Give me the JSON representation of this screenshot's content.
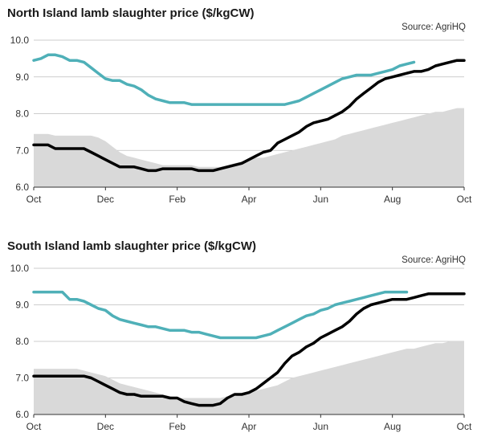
{
  "chart_data": [
    {
      "type": "line",
      "title": "North Island lamb slaughter price ($/kgCW)",
      "source": "Source: AgriHQ",
      "xlabel": "",
      "ylabel": "",
      "ylim": [
        6.0,
        10.0
      ],
      "yticks": [
        "6.0",
        "7.0",
        "8.0",
        "9.0",
        "10.0"
      ],
      "xticks": [
        "Oct",
        "Dec",
        "Feb",
        "Apr",
        "Jun",
        "Aug",
        "Oct"
      ],
      "grid": true,
      "legend": "none",
      "x": [
        "Oct",
        "",
        "",
        "",
        "",
        "",
        "",
        "",
        "",
        "",
        "Dec",
        "",
        "",
        "",
        "",
        "",
        "",
        "",
        "",
        "",
        "Feb",
        "",
        "",
        "",
        "",
        "",
        "",
        "",
        "",
        "",
        "Apr",
        "",
        "",
        "",
        "",
        "",
        "",
        "",
        "",
        "",
        "Jun",
        "",
        "",
        "",
        "",
        "",
        "",
        "",
        "",
        "",
        "Aug",
        "",
        "",
        "",
        "",
        "",
        "",
        "",
        "",
        "",
        "Oct"
      ],
      "series": [
        {
          "color": "#d9d9d9",
          "kind": "area",
          "values": [
            7.45,
            7.45,
            7.45,
            7.4,
            7.4,
            7.4,
            7.4,
            7.4,
            7.4,
            7.35,
            7.25,
            7.1,
            6.95,
            6.85,
            6.8,
            6.75,
            6.7,
            6.65,
            6.6,
            6.6,
            6.6,
            6.6,
            6.6,
            6.55,
            6.55,
            6.55,
            6.55,
            6.6,
            6.65,
            6.7,
            6.75,
            6.8,
            6.8,
            6.85,
            6.9,
            6.95,
            7.0,
            7.05,
            7.1,
            7.15,
            7.2,
            7.25,
            7.3,
            7.4,
            7.45,
            7.5,
            7.55,
            7.6,
            7.65,
            7.7,
            7.75,
            7.8,
            7.85,
            7.9,
            7.95,
            8.0,
            8.05,
            8.05,
            8.1,
            8.15,
            8.15
          ]
        },
        {
          "color": "#4fb0b8",
          "kind": "line",
          "values": [
            9.45,
            9.5,
            9.6,
            9.6,
            9.55,
            9.45,
            9.45,
            9.4,
            9.25,
            9.1,
            8.95,
            8.9,
            8.9,
            8.8,
            8.75,
            8.65,
            8.5,
            8.4,
            8.35,
            8.3,
            8.3,
            8.3,
            8.25,
            8.25,
            8.25,
            8.25,
            8.25,
            8.25,
            8.25,
            8.25,
            8.25,
            8.25,
            8.25,
            8.25,
            8.25,
            8.25,
            8.3,
            8.35,
            8.45,
            8.55,
            8.65,
            8.75,
            8.85,
            8.95,
            9.0,
            9.05,
            9.05,
            9.05,
            9.1,
            9.15,
            9.2,
            9.3,
            9.35,
            9.4,
            null,
            null,
            null,
            null,
            null,
            null,
            null
          ]
        },
        {
          "color": "#000000",
          "kind": "line",
          "values": [
            7.15,
            7.15,
            7.15,
            7.05,
            7.05,
            7.05,
            7.05,
            7.05,
            6.95,
            6.85,
            6.75,
            6.65,
            6.55,
            6.55,
            6.55,
            6.5,
            6.45,
            6.45,
            6.5,
            6.5,
            6.5,
            6.5,
            6.5,
            6.45,
            6.45,
            6.45,
            6.5,
            6.55,
            6.6,
            6.65,
            6.75,
            6.85,
            6.95,
            7.0,
            7.2,
            7.3,
            7.4,
            7.5,
            7.65,
            7.75,
            7.8,
            7.85,
            7.95,
            8.05,
            8.2,
            8.4,
            8.55,
            8.7,
            8.85,
            8.95,
            9.0,
            9.05,
            9.1,
            9.15,
            9.15,
            9.2,
            9.3,
            9.35,
            9.4,
            9.45,
            9.45
          ]
        }
      ]
    },
    {
      "type": "line",
      "title": "South Island lamb slaughter price ($/kgCW)",
      "source": "Source: AgriHQ",
      "xlabel": "",
      "ylabel": "",
      "ylim": [
        6.0,
        10.0
      ],
      "yticks": [
        "6.0",
        "7.0",
        "8.0",
        "9.0",
        "10.0"
      ],
      "xticks": [
        "Oct",
        "Dec",
        "Feb",
        "Apr",
        "Jun",
        "Aug",
        "Oct"
      ],
      "grid": true,
      "legend": "none",
      "x": [
        "Oct",
        "",
        "",
        "",
        "",
        "",
        "",
        "",
        "",
        "",
        "Dec",
        "",
        "",
        "",
        "",
        "",
        "",
        "",
        "",
        "",
        "Feb",
        "",
        "",
        "",
        "",
        "",
        "",
        "",
        "",
        "",
        "Apr",
        "",
        "",
        "",
        "",
        "",
        "",
        "",
        "",
        "",
        "Jun",
        "",
        "",
        "",
        "",
        "",
        "",
        "",
        "",
        "",
        "Aug",
        "",
        "",
        "",
        "",
        "",
        "",
        "",
        "",
        "",
        "Oct"
      ],
      "series": [
        {
          "color": "#d9d9d9",
          "kind": "area",
          "values": [
            7.25,
            7.25,
            7.25,
            7.25,
            7.25,
            7.25,
            7.25,
            7.2,
            7.15,
            7.1,
            7.05,
            6.95,
            6.85,
            6.8,
            6.75,
            6.7,
            6.65,
            6.6,
            6.55,
            6.5,
            6.45,
            6.45,
            6.45,
            6.45,
            6.45,
            6.45,
            6.45,
            6.5,
            6.5,
            6.55,
            6.6,
            6.65,
            6.7,
            6.75,
            6.8,
            6.9,
            7.0,
            7.05,
            7.1,
            7.15,
            7.2,
            7.25,
            7.3,
            7.35,
            7.4,
            7.45,
            7.5,
            7.55,
            7.6,
            7.65,
            7.7,
            7.75,
            7.8,
            7.8,
            7.85,
            7.9,
            7.95,
            7.95,
            8.0,
            8.0,
            8.0
          ]
        },
        {
          "color": "#4fb0b8",
          "kind": "line",
          "values": [
            9.35,
            9.35,
            9.35,
            9.35,
            9.35,
            9.15,
            9.15,
            9.1,
            9.0,
            8.9,
            8.85,
            8.7,
            8.6,
            8.55,
            8.5,
            8.45,
            8.4,
            8.4,
            8.35,
            8.3,
            8.3,
            8.3,
            8.25,
            8.25,
            8.2,
            8.15,
            8.1,
            8.1,
            8.1,
            8.1,
            8.1,
            8.1,
            8.15,
            8.2,
            8.3,
            8.4,
            8.5,
            8.6,
            8.7,
            8.75,
            8.85,
            8.9,
            9.0,
            9.05,
            9.1,
            9.15,
            9.2,
            9.25,
            9.3,
            9.35,
            9.35,
            9.35,
            9.35,
            null,
            null,
            null,
            null,
            null,
            null,
            null,
            null
          ]
        },
        {
          "color": "#000000",
          "kind": "line",
          "values": [
            7.05,
            7.05,
            7.05,
            7.05,
            7.05,
            7.05,
            7.05,
            7.05,
            7.0,
            6.9,
            6.8,
            6.7,
            6.6,
            6.55,
            6.55,
            6.5,
            6.5,
            6.5,
            6.5,
            6.45,
            6.45,
            6.35,
            6.3,
            6.25,
            6.25,
            6.25,
            6.3,
            6.45,
            6.55,
            6.55,
            6.6,
            6.7,
            6.85,
            7.0,
            7.15,
            7.4,
            7.6,
            7.7,
            7.85,
            7.95,
            8.1,
            8.2,
            8.3,
            8.4,
            8.55,
            8.75,
            8.9,
            9.0,
            9.05,
            9.1,
            9.15,
            9.15,
            9.15,
            9.2,
            9.25,
            9.3,
            9.3,
            9.3,
            9.3,
            9.3,
            9.3
          ]
        }
      ]
    }
  ]
}
